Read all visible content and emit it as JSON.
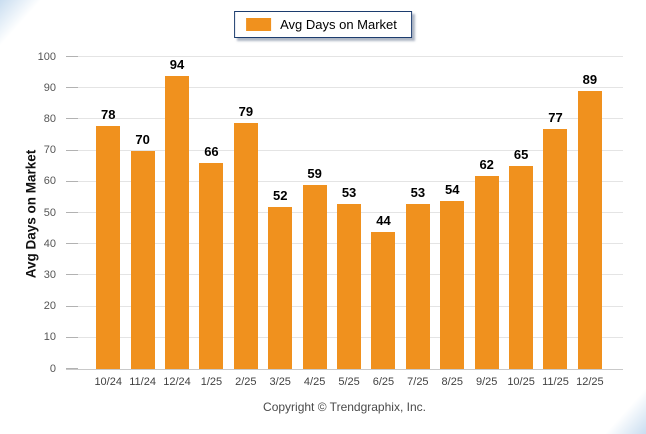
{
  "legend": {
    "label": "Avg Days on Market",
    "swatch_color": "#F0911E",
    "border_color": "#1C3C6E"
  },
  "chart_data": {
    "type": "bar",
    "title": "",
    "categories": [
      "10/24",
      "11/24",
      "12/24",
      "1/25",
      "2/25",
      "3/25",
      "4/25",
      "5/25",
      "6/25",
      "7/25",
      "8/25",
      "9/25",
      "10/25",
      "11/25",
      "12/25"
    ],
    "values": [
      78,
      70,
      94,
      66,
      79,
      52,
      59,
      53,
      44,
      53,
      54,
      62,
      65,
      77,
      89
    ],
    "xlabel": "",
    "ylabel": "Avg Days on Market",
    "ylim": [
      0,
      100
    ],
    "ytick_step": 10,
    "bar_color": "#F0911E",
    "grid": true,
    "value_labels": true,
    "legend_position": "top-center"
  },
  "footer": {
    "copyright": "Copyright © Trendgraphix, Inc."
  }
}
